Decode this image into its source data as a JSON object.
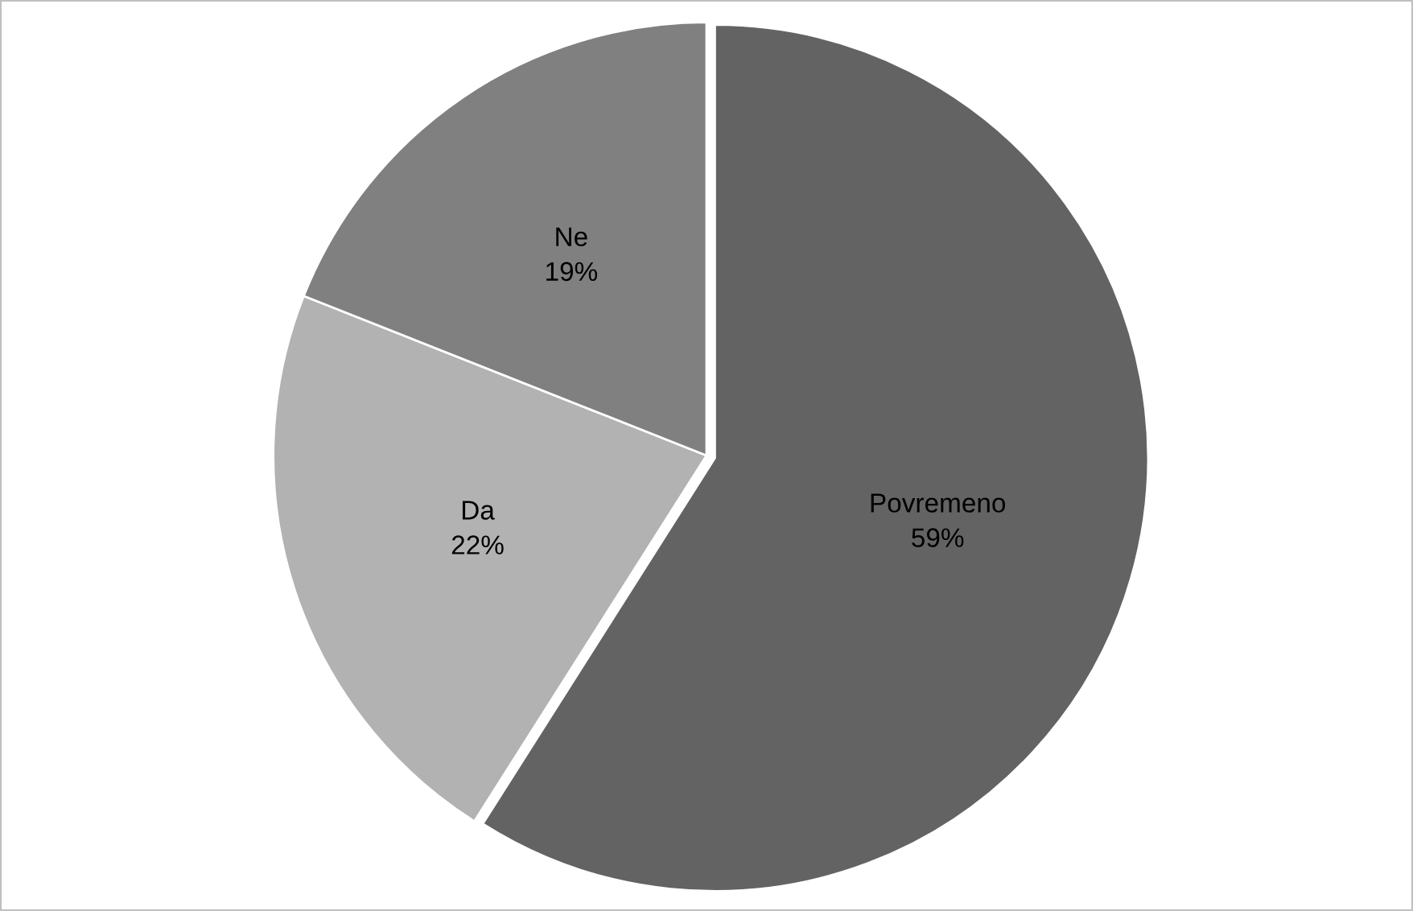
{
  "chart_data": {
    "type": "pie",
    "categories": [
      "Povremeno",
      "Da",
      "Ne"
    ],
    "values": [
      59,
      22,
      19
    ],
    "colors": [
      "#636363",
      "#b2b2b2",
      "#808080"
    ],
    "value_labels": [
      "59%",
      "22%",
      "19%"
    ],
    "legend": false
  }
}
